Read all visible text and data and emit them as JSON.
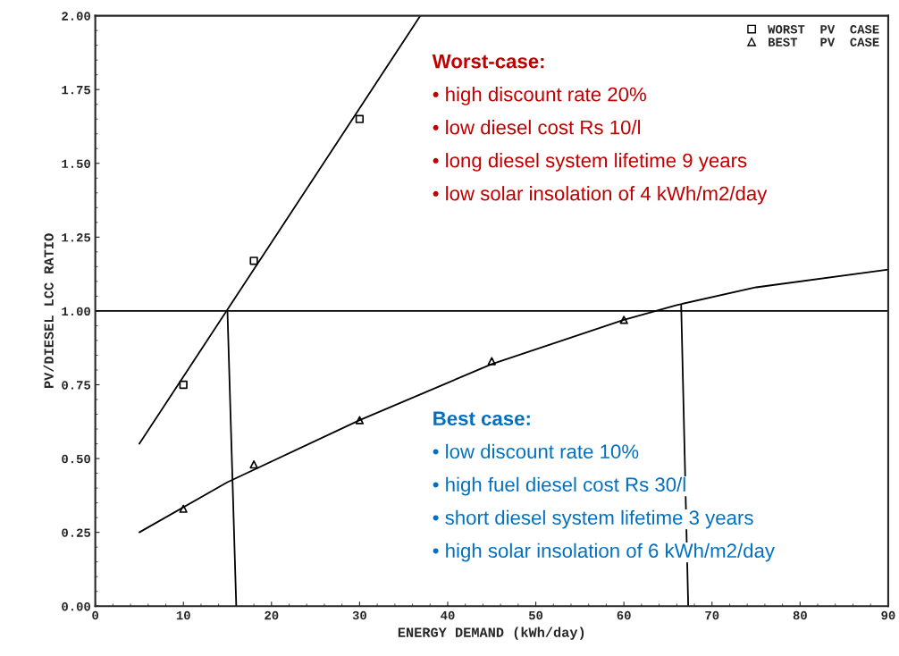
{
  "chart_data": {
    "type": "scatter",
    "xlabel": "ENERGY DEMAND (kWh/day)",
    "ylabel": "PV/DIESEL LCC RATIO",
    "xlim": [
      0,
      90
    ],
    "xticks": [
      0,
      10,
      20,
      30,
      40,
      50,
      60,
      70,
      80,
      90
    ],
    "ylim": [
      0,
      2.0
    ],
    "yticks": [
      {
        "value": 0,
        "label": "0.00"
      },
      {
        "value": 0.25,
        "label": "0.25"
      },
      {
        "value": 0.5,
        "label": "0.50"
      },
      {
        "value": 0.75,
        "label": "0.75"
      },
      {
        "value": 1.0,
        "label": "1.00"
      },
      {
        "value": 1.25,
        "label": "1.25"
      },
      {
        "value": 1.5,
        "label": "1.50"
      },
      {
        "value": 1.75,
        "label": "1.75"
      },
      {
        "value": 2.0,
        "label": "2.00"
      }
    ],
    "grid": false,
    "legend": "top right",
    "series": [
      {
        "name": "WORST  PV  CASE",
        "marker": "square",
        "color": "#000000",
        "x": [
          10,
          18,
          30
        ],
        "values": [
          0.75,
          1.17,
          1.65
        ]
      },
      {
        "name": "BEST   PV  CASE",
        "marker": "triangle",
        "color": "#000000",
        "x": [
          10,
          18,
          30,
          45,
          60
        ],
        "values": [
          0.33,
          0.48,
          0.63,
          0.83,
          0.97
        ]
      },
      {
        "type": "line",
        "color": "#000000",
        "x": [
          5,
          36.9
        ],
        "values": [
          0.55,
          2.0
        ]
      },
      {
        "type": "line",
        "color": "#000000",
        "x": [
          5,
          15,
          30,
          45,
          60,
          66,
          75,
          90
        ],
        "values": [
          0.25,
          0.42,
          0.63,
          0.82,
          0.97,
          1.02,
          1.08,
          1.14
        ]
      },
      {
        "type": "line",
        "color": "#000000",
        "x": [
          15,
          16
        ],
        "values": [
          1.0,
          0
        ]
      },
      {
        "type": "line",
        "color": "#000000",
        "x": [
          66.5,
          67.3
        ],
        "values": [
          1.02,
          0
        ]
      }
    ],
    "ref_lines": [
      {
        "axis": "y",
        "value": 1.0,
        "color": "#000000"
      }
    ],
    "annotations": [
      "Worst-case:",
      "• high discount rate 20%",
      "• low diesel cost Rs 10/l",
      "• long diesel system lifetime 9 years",
      "• low solar insolation of 4 kWh/m2/day",
      "Best case:",
      "• low discount rate 10%",
      "• high fuel diesel cost Rs 30/l",
      "• short diesel system lifetime 3 years",
      "• high solar insolation of 6 kWh/m2/day"
    ]
  }
}
